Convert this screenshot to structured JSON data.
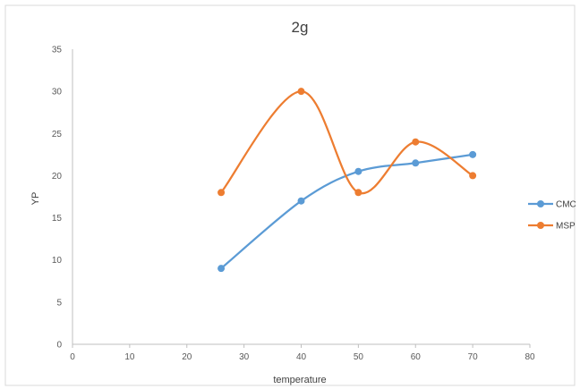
{
  "chart_data": {
    "type": "line",
    "title": "2g",
    "xlabel": "temperature",
    "ylabel": "YP",
    "xlim": [
      0,
      80
    ],
    "ylim": [
      0,
      35
    ],
    "xticks": [
      0,
      10,
      20,
      30,
      40,
      50,
      60,
      70,
      80
    ],
    "yticks": [
      0,
      5,
      10,
      15,
      20,
      25,
      30,
      35
    ],
    "grid": false,
    "smooth": true,
    "legend_position": "right",
    "series": [
      {
        "name": "CMC",
        "color": "#5b9bd5",
        "x": [
          26,
          40,
          50,
          60,
          70
        ],
        "y": [
          9,
          17,
          20.5,
          21.5,
          22.5
        ]
      },
      {
        "name": "MSP",
        "color": "#ed7d31",
        "x": [
          26,
          40,
          50,
          60,
          70
        ],
        "y": [
          18,
          30,
          18,
          24,
          20
        ]
      }
    ]
  }
}
